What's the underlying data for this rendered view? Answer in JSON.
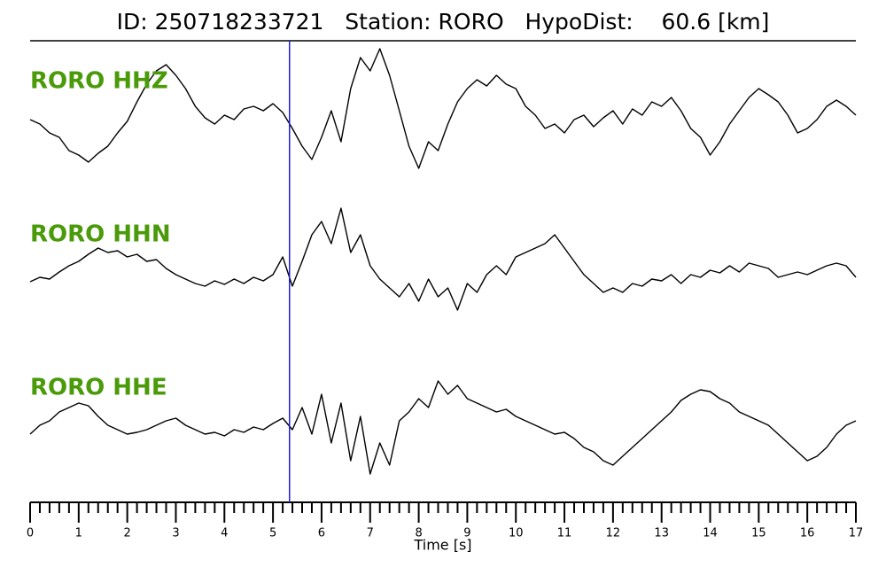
{
  "chart_data": {
    "type": "seismogram",
    "title": "ID: 250718233721   Station: RORO   HypoDist:    60.6 [km]",
    "xlabel": "Time [s]",
    "xlim": [
      0,
      17
    ],
    "xticks": [
      0,
      1,
      2,
      3,
      4,
      5,
      6,
      7,
      8,
      9,
      10,
      11,
      12,
      13,
      14,
      15,
      16,
      17
    ],
    "xminorticks": [
      0.2,
      0.4,
      0.6,
      0.8,
      1.2,
      1.4,
      1.6,
      1.8,
      2.2,
      2.4,
      2.6,
      2.8,
      3.2,
      3.4,
      3.6,
      3.8,
      4.2,
      4.4,
      4.6,
      4.8,
      5.2,
      5.4,
      5.6,
      5.8,
      6.2,
      6.4,
      6.6,
      6.8,
      7.2,
      7.4,
      7.6,
      7.8,
      8.2,
      8.4,
      8.6,
      8.8,
      9.2,
      9.4,
      9.6,
      9.8,
      10.2,
      10.4,
      10.6,
      10.8,
      11.2,
      11.4,
      11.6,
      11.8,
      12.2,
      12.4,
      12.6,
      12.8,
      13.2,
      13.4,
      13.6,
      13.8,
      14.2,
      14.4,
      14.6,
      14.8,
      15.2,
      15.4,
      15.6,
      15.8,
      16.2,
      16.4,
      16.6,
      16.8
    ],
    "pick": {
      "x": 5.34,
      "color": "#1f1fd6"
    },
    "label_color": "#4a9a0a",
    "x": [
      0,
      0.2,
      0.4,
      0.6,
      0.8,
      1,
      1.2,
      1.4,
      1.6,
      1.8,
      2,
      2.2,
      2.4,
      2.6,
      2.8,
      3,
      3.2,
      3.4,
      3.6,
      3.8,
      4,
      4.2,
      4.4,
      4.6,
      4.8,
      5,
      5.2,
      5.4,
      5.6,
      5.8,
      6,
      6.2,
      6.4,
      6.6,
      6.8,
      7,
      7.2,
      7.4,
      7.6,
      7.8,
      8,
      8.2,
      8.4,
      8.6,
      8.8,
      9,
      9.2,
      9.4,
      9.6,
      9.8,
      10,
      10.2,
      10.4,
      10.6,
      10.8,
      11,
      11.2,
      11.4,
      11.6,
      11.8,
      12,
      12.2,
      12.4,
      12.6,
      12.8,
      13,
      13.2,
      13.4,
      13.6,
      13.8,
      14,
      14.2,
      14.4,
      14.6,
      14.8,
      15,
      15.2,
      15.4,
      15.6,
      15.8,
      16,
      16.2,
      16.4,
      16.6,
      16.8,
      17
    ],
    "series": [
      {
        "name": "RORO HHZ",
        "color": "#000000",
        "values": [
          0,
          -5,
          -15,
          -20,
          -35,
          -40,
          -48,
          -38,
          -30,
          -15,
          -2,
          20,
          40,
          55,
          62,
          50,
          35,
          15,
          2,
          -5,
          5,
          0,
          12,
          15,
          10,
          18,
          8,
          -10,
          -30,
          -45,
          -20,
          10,
          -25,
          35,
          70,
          55,
          80,
          50,
          10,
          -30,
          -55,
          -25,
          -35,
          -5,
          20,
          35,
          45,
          38,
          50,
          40,
          35,
          15,
          5,
          -10,
          -5,
          -15,
          0,
          5,
          -8,
          2,
          10,
          -5,
          12,
          5,
          20,
          15,
          25,
          10,
          -10,
          -20,
          -40,
          -25,
          -5,
          10,
          25,
          35,
          28,
          20,
          5,
          -15,
          -10,
          0,
          15,
          22,
          15,
          5
        ]
      },
      {
        "name": "RORO HHN",
        "color": "#000000",
        "values": [
          -13,
          -8,
          -10,
          -2,
          5,
          10,
          18,
          25,
          20,
          22,
          15,
          18,
          10,
          12,
          2,
          -5,
          -10,
          -15,
          -18,
          -12,
          -16,
          -10,
          -15,
          -8,
          -12,
          -5,
          15,
          -18,
          10,
          40,
          55,
          30,
          70,
          20,
          40,
          5,
          -10,
          -20,
          -30,
          -15,
          -35,
          -10,
          -30,
          -20,
          -45,
          -15,
          -25,
          -5,
          5,
          -5,
          15,
          20,
          25,
          30,
          40,
          25,
          10,
          -5,
          -15,
          -25,
          -20,
          -25,
          -15,
          -18,
          -10,
          -12,
          -5,
          -15,
          -5,
          -8,
          0,
          -3,
          5,
          -2,
          8,
          5,
          2,
          -8,
          -5,
          -2,
          -5,
          0,
          5,
          8,
          5,
          -8
        ]
      },
      {
        "name": "RORO HHE",
        "color": "#000000",
        "values": [
          -10,
          0,
          5,
          15,
          20,
          25,
          22,
          10,
          0,
          -5,
          -10,
          -8,
          -5,
          0,
          5,
          8,
          0,
          -5,
          -10,
          -8,
          -12,
          -5,
          -8,
          -2,
          -5,
          2,
          8,
          -5,
          20,
          -10,
          35,
          -20,
          25,
          -40,
          10,
          -55,
          -20,
          -45,
          5,
          15,
          30,
          20,
          50,
          35,
          45,
          30,
          25,
          20,
          15,
          18,
          10,
          5,
          0,
          -5,
          -10,
          -8,
          -15,
          -25,
          -30,
          -40,
          -45,
          -35,
          -25,
          -15,
          -5,
          5,
          15,
          28,
          35,
          40,
          38,
          30,
          25,
          15,
          10,
          5,
          0,
          -10,
          -20,
          -30,
          -40,
          -35,
          -25,
          -10,
          0,
          5
        ]
      }
    ]
  }
}
